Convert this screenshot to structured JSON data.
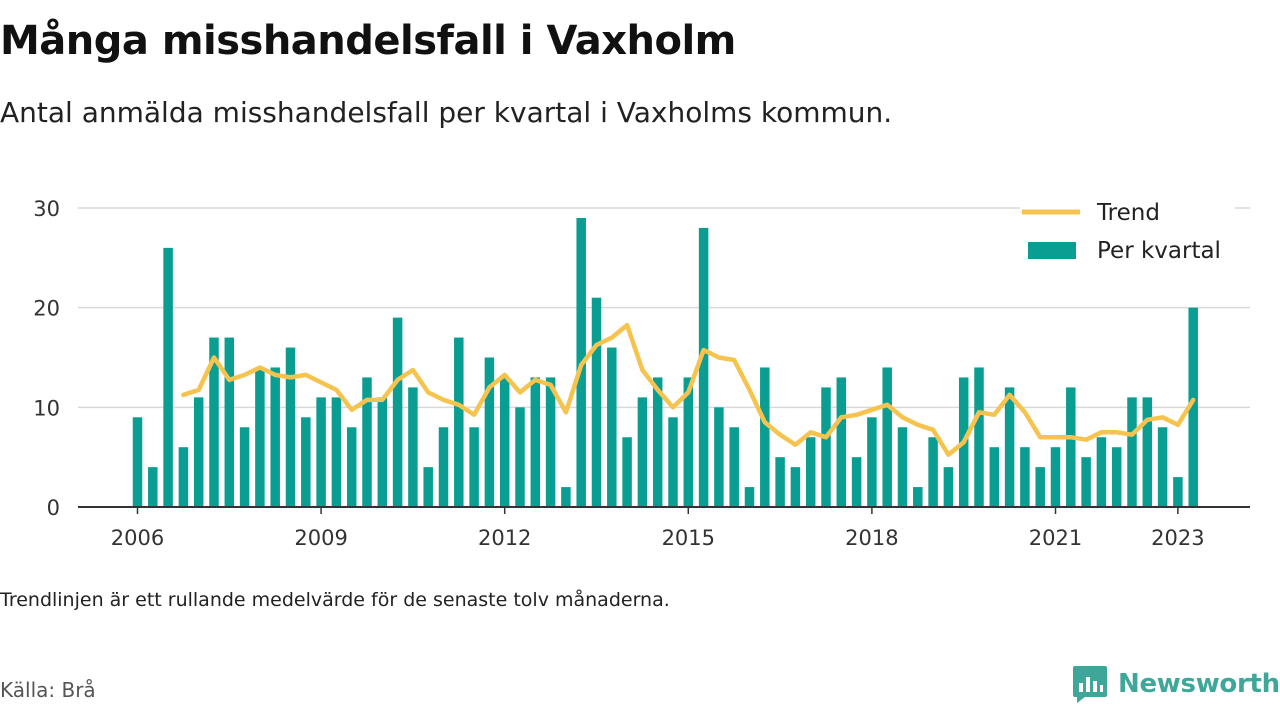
{
  "header": {
    "title": "Många misshandelsfall i Vaxholm",
    "subtitle": "Antal anmälda misshandelsfall per kvartal i Vaxholms kommun."
  },
  "footer": {
    "note": "Trendlinjen är ett rullande medelvärde för de senaste tolv månaderna.",
    "source": "Källa: Brå",
    "brand": "Newsworthy"
  },
  "colors": {
    "bars": "#0a9e93",
    "trend": "#f7c34f",
    "grid": "#d9d9d9",
    "brand": "#3fa79a"
  },
  "chart_data": {
    "type": "bar",
    "x": [
      "2006-Q1",
      "2006-Q2",
      "2006-Q3",
      "2006-Q4",
      "2007-Q1",
      "2007-Q2",
      "2007-Q3",
      "2007-Q4",
      "2008-Q1",
      "2008-Q2",
      "2008-Q3",
      "2008-Q4",
      "2009-Q1",
      "2009-Q2",
      "2009-Q3",
      "2009-Q4",
      "2010-Q1",
      "2010-Q2",
      "2010-Q3",
      "2010-Q4",
      "2011-Q1",
      "2011-Q2",
      "2011-Q3",
      "2011-Q4",
      "2012-Q1",
      "2012-Q2",
      "2012-Q3",
      "2012-Q4",
      "2013-Q1",
      "2013-Q2",
      "2013-Q3",
      "2013-Q4",
      "2014-Q1",
      "2014-Q2",
      "2014-Q3",
      "2014-Q4",
      "2015-Q1",
      "2015-Q2",
      "2015-Q3",
      "2015-Q4",
      "2016-Q1",
      "2016-Q2",
      "2016-Q3",
      "2016-Q4",
      "2017-Q1",
      "2017-Q2",
      "2017-Q3",
      "2017-Q4",
      "2018-Q1",
      "2018-Q2",
      "2018-Q3",
      "2018-Q4",
      "2019-Q1",
      "2019-Q2",
      "2019-Q3",
      "2019-Q4",
      "2020-Q1",
      "2020-Q2",
      "2020-Q3",
      "2020-Q4",
      "2021-Q1",
      "2021-Q2",
      "2021-Q3",
      "2021-Q4",
      "2022-Q1",
      "2022-Q2",
      "2022-Q3",
      "2022-Q4",
      "2023-Q1",
      "2023-Q2"
    ],
    "series": [
      {
        "name": "Per kvartal",
        "type": "bar",
        "values": [
          9,
          4,
          26,
          6,
          11,
          17,
          17,
          8,
          14,
          14,
          16,
          9,
          11,
          11,
          8,
          13,
          11,
          19,
          12,
          4,
          8,
          17,
          8,
          15,
          13,
          10,
          13,
          13,
          2,
          29,
          21,
          16,
          7,
          11,
          13,
          9,
          13,
          28,
          10,
          8,
          2,
          14,
          5,
          4,
          7,
          12,
          13,
          5,
          9,
          14,
          8,
          2,
          7,
          4,
          13,
          14,
          6,
          12,
          6,
          4,
          6,
          12,
          5,
          7,
          6,
          11,
          11,
          8,
          3,
          20
        ]
      },
      {
        "name": "Trend",
        "type": "line",
        "values": [
          null,
          null,
          null,
          11.25,
          11.75,
          15.0,
          12.75,
          13.25,
          14.0,
          13.25,
          13.0,
          13.25,
          12.5,
          11.75,
          9.75,
          10.75,
          10.75,
          12.75,
          13.75,
          11.5,
          10.75,
          10.25,
          9.25,
          12.0,
          13.25,
          11.5,
          12.75,
          12.25,
          9.5,
          14.25,
          16.25,
          17.0,
          18.25,
          13.75,
          11.75,
          10.0,
          11.5,
          15.75,
          15.0,
          14.75,
          11.75,
          8.5,
          7.25,
          6.25,
          7.5,
          7.0,
          9.0,
          9.25,
          9.75,
          10.25,
          9.0,
          8.25,
          7.75,
          5.25,
          6.5,
          9.5,
          9.25,
          11.25,
          9.5,
          7.0,
          7.0,
          7.0,
          6.75,
          7.5,
          7.5,
          7.25,
          8.75,
          9.0,
          8.25,
          10.75
        ]
      }
    ],
    "xticks": [
      "2006",
      "2009",
      "2012",
      "2015",
      "2018",
      "2021",
      "2023"
    ],
    "yticks": [
      0,
      10,
      20,
      30
    ],
    "ylim": [
      0,
      30
    ],
    "grid": true,
    "legend_position": "top-right",
    "title": "Många misshandelsfall i Vaxholm",
    "subtitle": "Antal anmälda misshandelsfall per kvartal i Vaxholms kommun.",
    "xlabel": "",
    "ylabel": ""
  }
}
